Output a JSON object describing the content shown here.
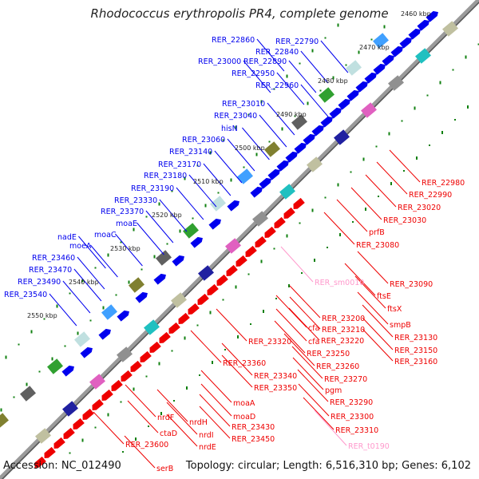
{
  "title": "Rhodococcus erythropolis PR4, complete genome",
  "footer": {
    "accession": "Accession: NC_012490",
    "summary": "Topology: circular; Length: 6,516,310 bp; Genes: 6,102"
  },
  "colors": {
    "forward": "#0000ee",
    "reverse": "#ee0000",
    "tick": "#108010",
    "backbone": "#9a9a9a",
    "rna": "#ff99cc"
  },
  "kbp_labels": [
    "2460 kbp",
    "2470 kbp",
    "2480 kbp",
    "2490 kbp",
    "2500 kbp",
    "2510 kbp",
    "2520 kbp",
    "2530 kbp",
    "2540 kbp",
    "2550 kbp"
  ],
  "forward_labels": [
    "RER_22860",
    "RER_22790",
    "RER_22840",
    "RER_23000",
    "RER_22890",
    "RER_22950",
    "RER_22960",
    "RER_23010",
    "RER_23040",
    "hisN",
    "RER_23060",
    "RER_23140",
    "RER_23170",
    "RER_23180",
    "RER_23190",
    "RER_23330",
    "RER_23370",
    "moaE",
    "moaC",
    "nadE",
    "moeA",
    "RER_23460",
    "RER_23470",
    "RER_23490",
    "RER_23540"
  ],
  "reverse_labels": [
    "RER_22980",
    "RER_22990",
    "RER_23020",
    "RER_23030",
    "prfB",
    "RER_23080",
    "RER_23090",
    "ftsE",
    "ftsX",
    "smpB",
    "RER_23130",
    "RER_23150",
    "RER_23160",
    "RER_23200",
    "RER_23210",
    "cfa",
    "RER_23220",
    "cfa",
    "RER_23250",
    "RER_23320",
    "RER_23260",
    "RER_23270",
    "RER_23360",
    "RER_23340",
    "pgm",
    "RER_23350",
    "RER_23290",
    "RER_23300",
    "moaA",
    "RER_23310",
    "moaD",
    "nrdF",
    "nrdH",
    "RER_23430",
    "ctaD",
    "nrdI",
    "RER_23450",
    "nrdE",
    "RER_23600",
    "serB"
  ],
  "rna_labels": [
    "RER_sm0010",
    "RER_t0190"
  ]
}
